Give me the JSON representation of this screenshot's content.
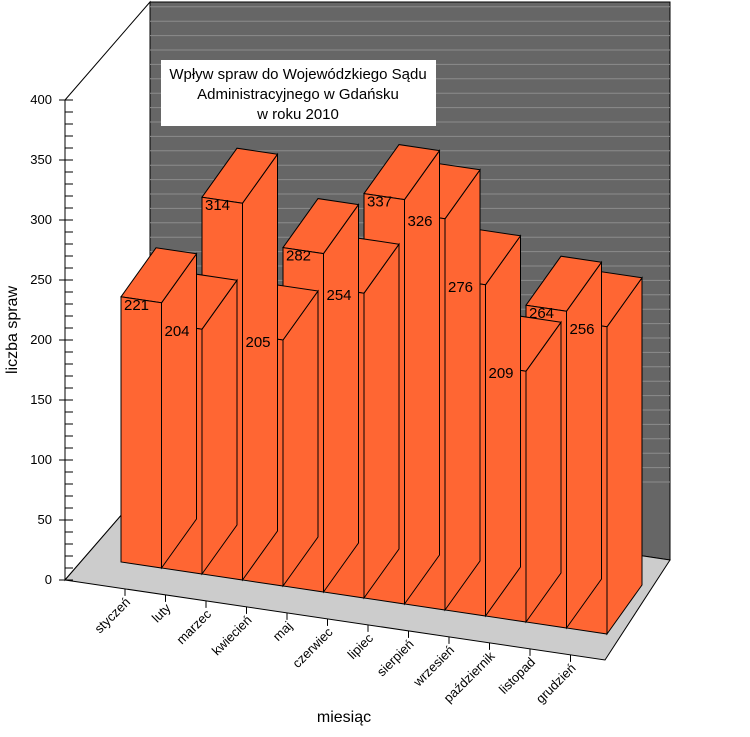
{
  "chart_data": {
    "type": "bar",
    "title_lines": [
      "Wpływ spraw do Wojewódzkiego Sądu",
      "Administracyjnego w Gdańsku",
      "w roku 2010"
    ],
    "xlabel": "miesiąc",
    "ylabel": "liczba spraw",
    "categories": [
      "styczeń",
      "luty",
      "marzec",
      "kwiecień",
      "maj",
      "czerwiec",
      "lipiec",
      "sierpień",
      "wrzesień",
      "październik",
      "listopad",
      "grudzień"
    ],
    "values": [
      221,
      204,
      314,
      205,
      282,
      254,
      337,
      326,
      276,
      209,
      264,
      256
    ],
    "ylim": [
      0,
      400
    ],
    "yticks": [
      0,
      50,
      100,
      150,
      200,
      250,
      300,
      350,
      400
    ],
    "grid": true,
    "legend": "none",
    "colors": {
      "bar_front": "#ff6633",
      "bar_side": "#ff6633",
      "bar_top": "#ff6633",
      "back_wall": "#666666",
      "grid_line": "#8c8c8c",
      "side_wall": "#ffffff",
      "floor": "#cccccc",
      "edge": "#000000"
    }
  }
}
